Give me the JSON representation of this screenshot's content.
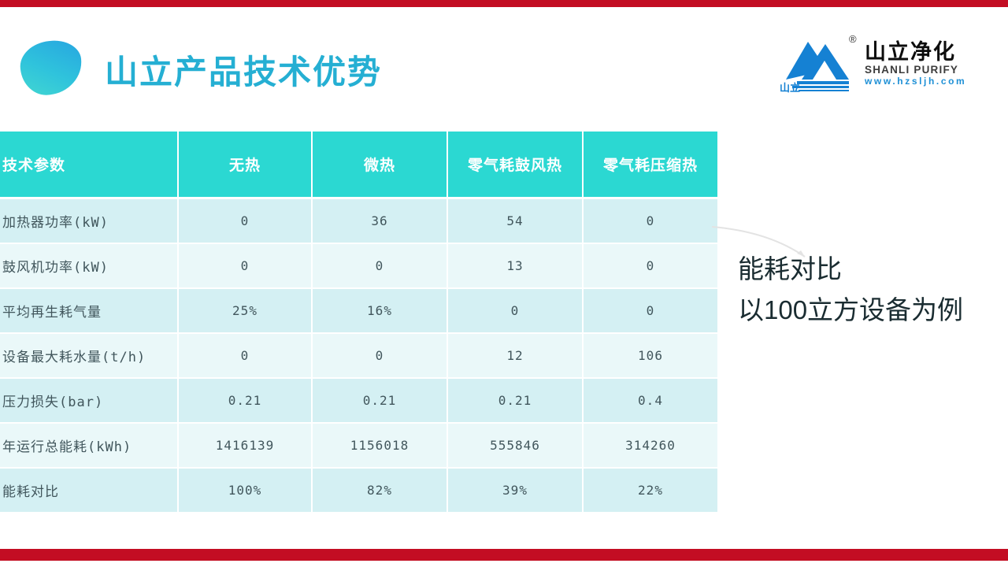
{
  "slide": {
    "title": "山立产品技术优势",
    "accent_bar_color": "#c30d23",
    "title_color": "#25afd3"
  },
  "logo": {
    "mark_text": "山立",
    "registered": "®",
    "name_cn": "山立净化",
    "name_en": "SHANLI PURIFY",
    "website": "www.hzsljh.com",
    "brand_blue": "#1581d3"
  },
  "table": {
    "header_bg": "#2bd8d2",
    "row_bg_odd": "#d4f0f3",
    "row_bg_even": "#eaf8f9",
    "header": [
      "技术参数",
      "无热",
      "微热",
      "零气耗鼓风热",
      "零气耗压缩热"
    ],
    "rows": [
      {
        "label": "加热器功率(kW)",
        "values": [
          "0",
          "36",
          "54",
          "0"
        ]
      },
      {
        "label": "鼓风机功率(kW)",
        "values": [
          "0",
          "0",
          "13",
          "0"
        ]
      },
      {
        "label": "平均再生耗气量",
        "values": [
          "25%",
          "16%",
          "0",
          "0"
        ]
      },
      {
        "label": "设备最大耗水量(t/h)",
        "values": [
          "0",
          "0",
          "12",
          "106"
        ]
      },
      {
        "label": "压力损失(bar)",
        "values": [
          "0.21",
          "0.21",
          "0.21",
          "0.4"
        ]
      },
      {
        "label": "年运行总能耗(kWh)",
        "values": [
          "1416139",
          "1156018",
          "555846",
          "314260"
        ]
      },
      {
        "label": "能耗对比",
        "values": [
          "100%",
          "82%",
          "39%",
          "22%"
        ]
      }
    ]
  },
  "annotation": {
    "line1": "能耗对比",
    "line2": "以100立方设备为例"
  }
}
